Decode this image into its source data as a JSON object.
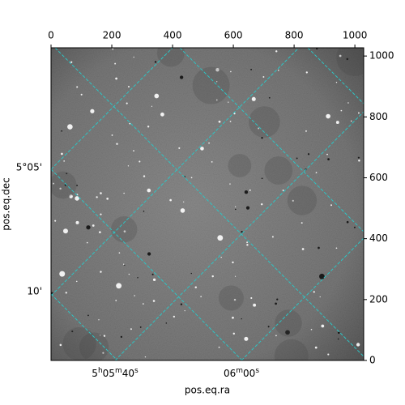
{
  "chart_data": {
    "type": "image",
    "xlabel": "pos.eq.ra",
    "ylabel": "pos.eq.dec",
    "xlim": [
      0,
      1029
    ],
    "ylim": [
      0,
      1027
    ],
    "xticks": [
      0,
      200,
      400,
      600,
      800,
      1000
    ],
    "yticks": [
      0,
      200,
      400,
      600,
      800,
      1000
    ],
    "ra_tick_labels": [
      "5h05m40s",
      "06m00s"
    ],
    "dec_tick_labels": [
      "5°05'",
      "10'"
    ],
    "grid_color": "#2ec4c4"
  }
}
